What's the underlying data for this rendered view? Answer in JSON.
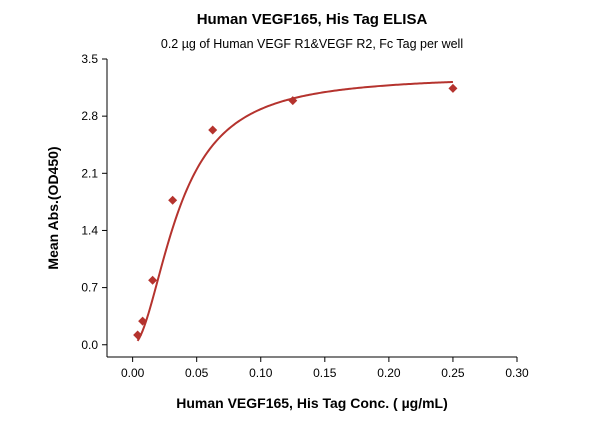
{
  "chart_data": {
    "type": "scatter",
    "title": "Human VEGF165, His Tag ELISA",
    "subtitle": "0.2 µg of Human VEGF R1&VEGF R2, Fc Tag per well",
    "xlabel": "Human VEGF165, His Tag Conc. ( µg/mL)",
    "ylabel": "Mean Abs.(OD450)",
    "xlim": [
      -0.02,
      0.3
    ],
    "ylim": [
      -0.15,
      3.5
    ],
    "x_ticks": [
      0.0,
      0.05,
      0.1,
      0.15,
      0.2,
      0.25,
      0.3
    ],
    "x_tick_labels": [
      "0.00",
      "0.05",
      "0.10",
      "0.15",
      "0.20",
      "0.25",
      "0.30"
    ],
    "y_ticks": [
      0.0,
      0.7,
      1.4,
      2.1,
      2.8,
      3.5
    ],
    "y_tick_labels": [
      "0.0",
      "0.7",
      "1.4",
      "2.1",
      "2.8",
      "3.5"
    ],
    "grid": false,
    "series": [
      {
        "marker": "diamond",
        "color": "#b5332e",
        "x": [
          0.0039,
          0.0078,
          0.0156,
          0.03125,
          0.0625,
          0.125,
          0.25
        ],
        "y": [
          0.12,
          0.29,
          0.79,
          1.77,
          2.63,
          2.99,
          3.14
        ],
        "fit_curve": true
      }
    ]
  }
}
